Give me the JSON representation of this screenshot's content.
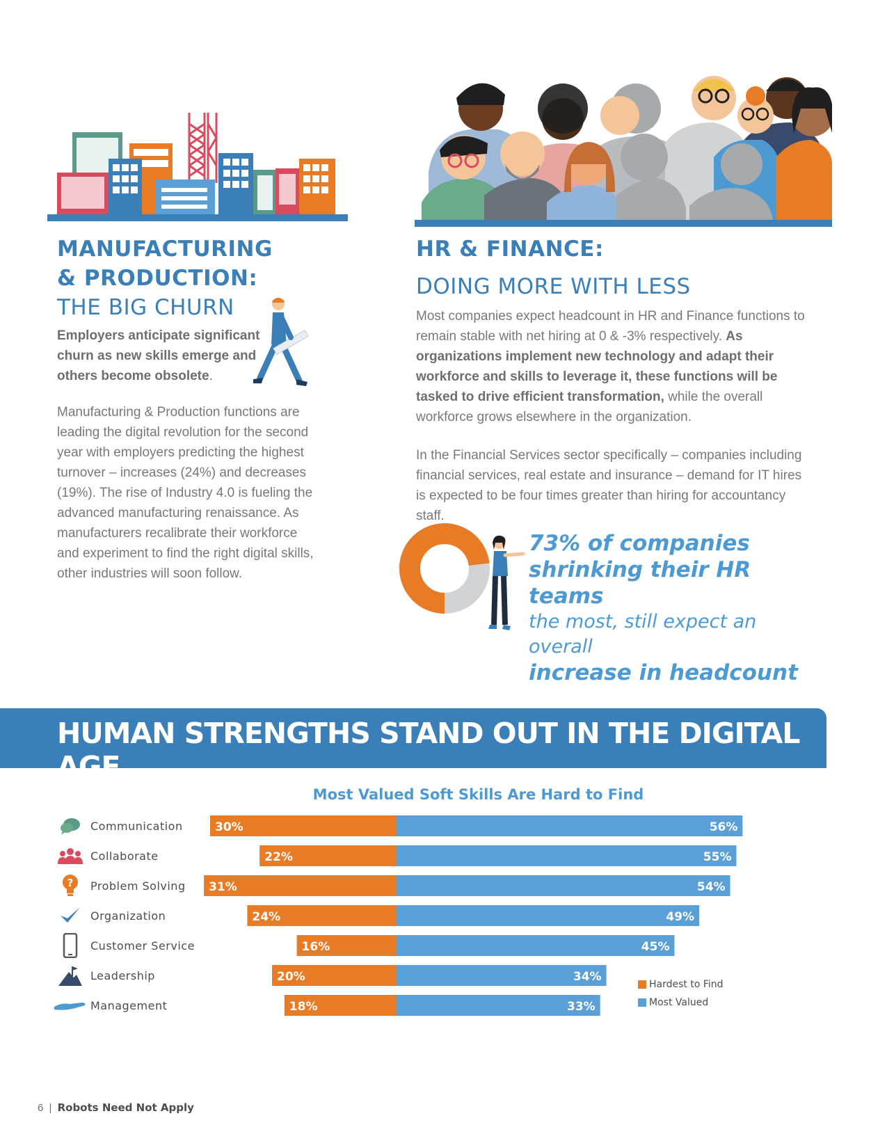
{
  "colors": {
    "accent_blue": "#3a7fb7",
    "light_blue": "#5aa0d6",
    "orange": "#e87b25",
    "gray_text": "#77787b"
  },
  "left_section": {
    "heading_bold_1": "MANUFACTURING",
    "heading_bold_2": "& PRODUCTION:",
    "heading_light": "THE BIG CHURN",
    "lead_1": "Employers anticipate significant",
    "lead_2": "churn as new skills emerge and",
    "lead_3": "others become obsolete",
    "lead_period": ".",
    "body": "Manufacturing & Production functions are leading the digital revolution for the second year with employers predicting the highest turnover – increases (24%) and decreases (19%). The rise of Industry 4.0 is fueling the advanced manufacturing renaissance. As manufacturers recalibrate their workforce and experiment to find the right digital skills, other industries will soon follow."
  },
  "right_section": {
    "heading_bold": "HR & FINANCE:",
    "heading_light": "DOING MORE WITH LESS",
    "para1_plain": "Most companies expect headcount in HR and Finance functions to remain stable with net hiring at 0 & -3% respectively.",
    "para1_bold": "As organizations implement new technology and adapt their workforce and skills to leverage it, these functions will be tasked to drive efficient transformation,",
    "para1_end": "while the overall workforce grows elsewhere in the organization.",
    "para2": "In the Financial Services sector specifically – companies including financial services, real estate and insurance – demand for IT hires is expected to be four times greater than hiring for accountancy staff.",
    "stat_line1": "73% of companies",
    "stat_line2": "shrinking their HR teams",
    "stat_line3": "the most, still expect an overall",
    "stat_line4": "increase in headcount",
    "donut_value": 73
  },
  "banner": {
    "title": "HUMAN STRENGTHS STAND OUT IN THE DIGITAL AGE"
  },
  "chart_data": {
    "type": "bar",
    "title": "Most Valued Soft Skills Are Hard to Find",
    "categories": [
      "Communication",
      "Collaborate",
      "Problem Solving",
      "Organization",
      "Customer Service",
      "Leadership",
      "Management"
    ],
    "category_icons": [
      "speech-bubbles-icon",
      "people-group-icon",
      "lightbulb-question-icon",
      "checkmark-icon",
      "smartphone-icon",
      "mountain-flag-icon",
      "open-hand-icon"
    ],
    "series": [
      {
        "name": "Hardest to Find",
        "color": "#e87b25",
        "values": [
          30,
          22,
          31,
          24,
          16,
          20,
          18
        ],
        "labels": [
          "30%",
          "22%",
          "31%",
          "24%",
          "16%",
          "20%",
          "18%"
        ]
      },
      {
        "name": "Most Valued",
        "color": "#5aa0d6",
        "values": [
          56,
          55,
          54,
          49,
          45,
          34,
          33
        ],
        "labels": [
          "56%",
          "55%",
          "54%",
          "49%",
          "45%",
          "34%",
          "33%"
        ]
      }
    ],
    "legend_position": "bottom-right",
    "grid": false
  },
  "footer": {
    "page_number": "6",
    "separator": "|",
    "title": "Robots Need Not Apply"
  }
}
